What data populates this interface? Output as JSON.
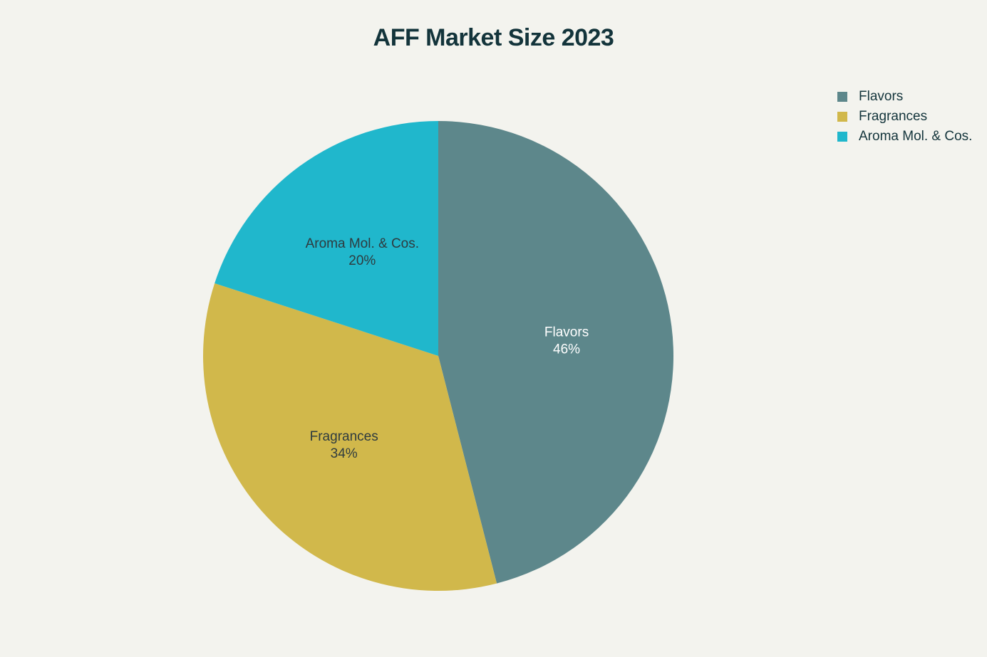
{
  "chart_data": {
    "type": "pie",
    "title": "AFF Market Size 2023",
    "legend_position": "top-right",
    "slices": [
      {
        "label": "Flavors",
        "value": 46,
        "value_label": "46%",
        "color": "#5d878b",
        "text_color": "#ffffff"
      },
      {
        "label": "Fragrances",
        "value": 34,
        "value_label": "34%",
        "color": "#d1b84b",
        "text_color": "#2e3b3f"
      },
      {
        "label": "Aroma Mol. & Cos.",
        "value": 20,
        "value_label": "20%",
        "color": "#20b7cc",
        "text_color": "#2e3b3f"
      }
    ],
    "legend_order": [
      "Flavors",
      "Fragrances",
      "Aroma Mol. & Cos."
    ]
  }
}
